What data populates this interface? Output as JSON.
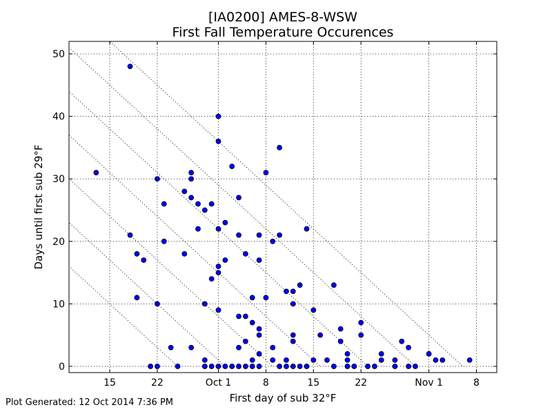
{
  "chart_data": {
    "type": "scatter",
    "title": "[IA0200] AMES-8-WSW",
    "subtitle": "First Fall Temperature Occurences",
    "xlabel": "First day of sub 32°F",
    "ylabel": "Days until first sub 29°F",
    "xlim": [
      "2000-09-09",
      "2000-11-11"
    ],
    "ylim": [
      -1,
      52
    ],
    "x_ticks": [
      {
        "date": "2000-09-15",
        "label": "15"
      },
      {
        "date": "2000-09-22",
        "label": "22"
      },
      {
        "date": "2000-10-01",
        "label": "Oct 1"
      },
      {
        "date": "2000-10-08",
        "label": "8"
      },
      {
        "date": "2000-10-15",
        "label": "15"
      },
      {
        "date": "2000-10-22",
        "label": "22"
      },
      {
        "date": "2000-11-01",
        "label": "Nov 1"
      },
      {
        "date": "2000-11-08",
        "label": "8"
      }
    ],
    "y_ticks": [
      0,
      10,
      20,
      30,
      40,
      50
    ],
    "grid": true,
    "guide_line_end_dates": [
      "2000-09-25",
      "2000-10-02",
      "2000-10-09",
      "2000-10-16",
      "2000-10-23",
      "2000-10-30",
      "2000-11-06"
    ],
    "marker_color": "#0000ff",
    "points": [
      {
        "x": "2000-09-13",
        "y": 31
      },
      {
        "x": "2000-09-18",
        "y": 48
      },
      {
        "x": "2000-09-18",
        "y": 21
      },
      {
        "x": "2000-09-19",
        "y": 18
      },
      {
        "x": "2000-09-19",
        "y": 11
      },
      {
        "x": "2000-09-20",
        "y": 17
      },
      {
        "x": "2000-09-21",
        "y": 0
      },
      {
        "x": "2000-09-22",
        "y": 30
      },
      {
        "x": "2000-09-22",
        "y": 10
      },
      {
        "x": "2000-09-22",
        "y": 0
      },
      {
        "x": "2000-09-23",
        "y": 26
      },
      {
        "x": "2000-09-23",
        "y": 20
      },
      {
        "x": "2000-09-24",
        "y": 3
      },
      {
        "x": "2000-09-25",
        "y": 0
      },
      {
        "x": "2000-09-26",
        "y": 28
      },
      {
        "x": "2000-09-26",
        "y": 18
      },
      {
        "x": "2000-09-27",
        "y": 31
      },
      {
        "x": "2000-09-27",
        "y": 30
      },
      {
        "x": "2000-09-27",
        "y": 27
      },
      {
        "x": "2000-09-27",
        "y": 3
      },
      {
        "x": "2000-09-28",
        "y": 26
      },
      {
        "x": "2000-09-28",
        "y": 22
      },
      {
        "x": "2000-09-29",
        "y": 25
      },
      {
        "x": "2000-09-29",
        "y": 10
      },
      {
        "x": "2000-09-29",
        "y": 1
      },
      {
        "x": "2000-09-29",
        "y": 0
      },
      {
        "x": "2000-09-30",
        "y": 26
      },
      {
        "x": "2000-09-30",
        "y": 14
      },
      {
        "x": "2000-09-30",
        "y": 0
      },
      {
        "x": "2000-10-01",
        "y": 40
      },
      {
        "x": "2000-10-01",
        "y": 36
      },
      {
        "x": "2000-10-01",
        "y": 22
      },
      {
        "x": "2000-10-01",
        "y": 16
      },
      {
        "x": "2000-10-01",
        "y": 15
      },
      {
        "x": "2000-10-01",
        "y": 9
      },
      {
        "x": "2000-10-01",
        "y": 0
      },
      {
        "x": "2000-10-02",
        "y": 23
      },
      {
        "x": "2000-10-02",
        "y": 17
      },
      {
        "x": "2000-10-02",
        "y": 0
      },
      {
        "x": "2000-10-03",
        "y": 32
      },
      {
        "x": "2000-10-03",
        "y": 0
      },
      {
        "x": "2000-10-04",
        "y": 27
      },
      {
        "x": "2000-10-04",
        "y": 21
      },
      {
        "x": "2000-10-04",
        "y": 8
      },
      {
        "x": "2000-10-04",
        "y": 3
      },
      {
        "x": "2000-10-04",
        "y": 0
      },
      {
        "x": "2000-10-05",
        "y": 18
      },
      {
        "x": "2000-10-05",
        "y": 8
      },
      {
        "x": "2000-10-05",
        "y": 4
      },
      {
        "x": "2000-10-05",
        "y": 0
      },
      {
        "x": "2000-10-06",
        "y": 11
      },
      {
        "x": "2000-10-06",
        "y": 7
      },
      {
        "x": "2000-10-06",
        "y": 1
      },
      {
        "x": "2000-10-06",
        "y": 0
      },
      {
        "x": "2000-10-07",
        "y": 21
      },
      {
        "x": "2000-10-07",
        "y": 17
      },
      {
        "x": "2000-10-07",
        "y": 6
      },
      {
        "x": "2000-10-07",
        "y": 5
      },
      {
        "x": "2000-10-07",
        "y": 2
      },
      {
        "x": "2000-10-07",
        "y": 0
      },
      {
        "x": "2000-10-08",
        "y": 31
      },
      {
        "x": "2000-10-08",
        "y": 11
      },
      {
        "x": "2000-10-09",
        "y": 20
      },
      {
        "x": "2000-10-09",
        "y": 3
      },
      {
        "x": "2000-10-09",
        "y": 1
      },
      {
        "x": "2000-10-10",
        "y": 35
      },
      {
        "x": "2000-10-10",
        "y": 21
      },
      {
        "x": "2000-10-10",
        "y": 0
      },
      {
        "x": "2000-10-11",
        "y": 12
      },
      {
        "x": "2000-10-11",
        "y": 1
      },
      {
        "x": "2000-10-11",
        "y": 0
      },
      {
        "x": "2000-10-12",
        "y": 12
      },
      {
        "x": "2000-10-12",
        "y": 10
      },
      {
        "x": "2000-10-12",
        "y": 5
      },
      {
        "x": "2000-10-12",
        "y": 4
      },
      {
        "x": "2000-10-12",
        "y": 0
      },
      {
        "x": "2000-10-13",
        "y": 13
      },
      {
        "x": "2000-10-13",
        "y": 0
      },
      {
        "x": "2000-10-14",
        "y": 22
      },
      {
        "x": "2000-10-14",
        "y": 0
      },
      {
        "x": "2000-10-15",
        "y": 9
      },
      {
        "x": "2000-10-15",
        "y": 1
      },
      {
        "x": "2000-10-16",
        "y": 5
      },
      {
        "x": "2000-10-17",
        "y": 1
      },
      {
        "x": "2000-10-18",
        "y": 13
      },
      {
        "x": "2000-10-18",
        "y": 0
      },
      {
        "x": "2000-10-19",
        "y": 6
      },
      {
        "x": "2000-10-19",
        "y": 4
      },
      {
        "x": "2000-10-20",
        "y": 2
      },
      {
        "x": "2000-10-20",
        "y": 1
      },
      {
        "x": "2000-10-20",
        "y": 0
      },
      {
        "x": "2000-10-21",
        "y": 0
      },
      {
        "x": "2000-10-22",
        "y": 7
      },
      {
        "x": "2000-10-22",
        "y": 5
      },
      {
        "x": "2000-10-23",
        "y": 0
      },
      {
        "x": "2000-10-24",
        "y": 0
      },
      {
        "x": "2000-10-25",
        "y": 2
      },
      {
        "x": "2000-10-25",
        "y": 1
      },
      {
        "x": "2000-10-27",
        "y": 1
      },
      {
        "x": "2000-10-27",
        "y": 0
      },
      {
        "x": "2000-10-28",
        "y": 4
      },
      {
        "x": "2000-10-29",
        "y": 3
      },
      {
        "x": "2000-10-29",
        "y": 0
      },
      {
        "x": "2000-10-30",
        "y": 0
      },
      {
        "x": "2000-11-01",
        "y": 2
      },
      {
        "x": "2000-11-02",
        "y": 1
      },
      {
        "x": "2000-11-03",
        "y": 1
      },
      {
        "x": "2000-11-07",
        "y": 1
      }
    ]
  },
  "footer": "Plot Generated: 12 Oct 2014 7:36 PM"
}
